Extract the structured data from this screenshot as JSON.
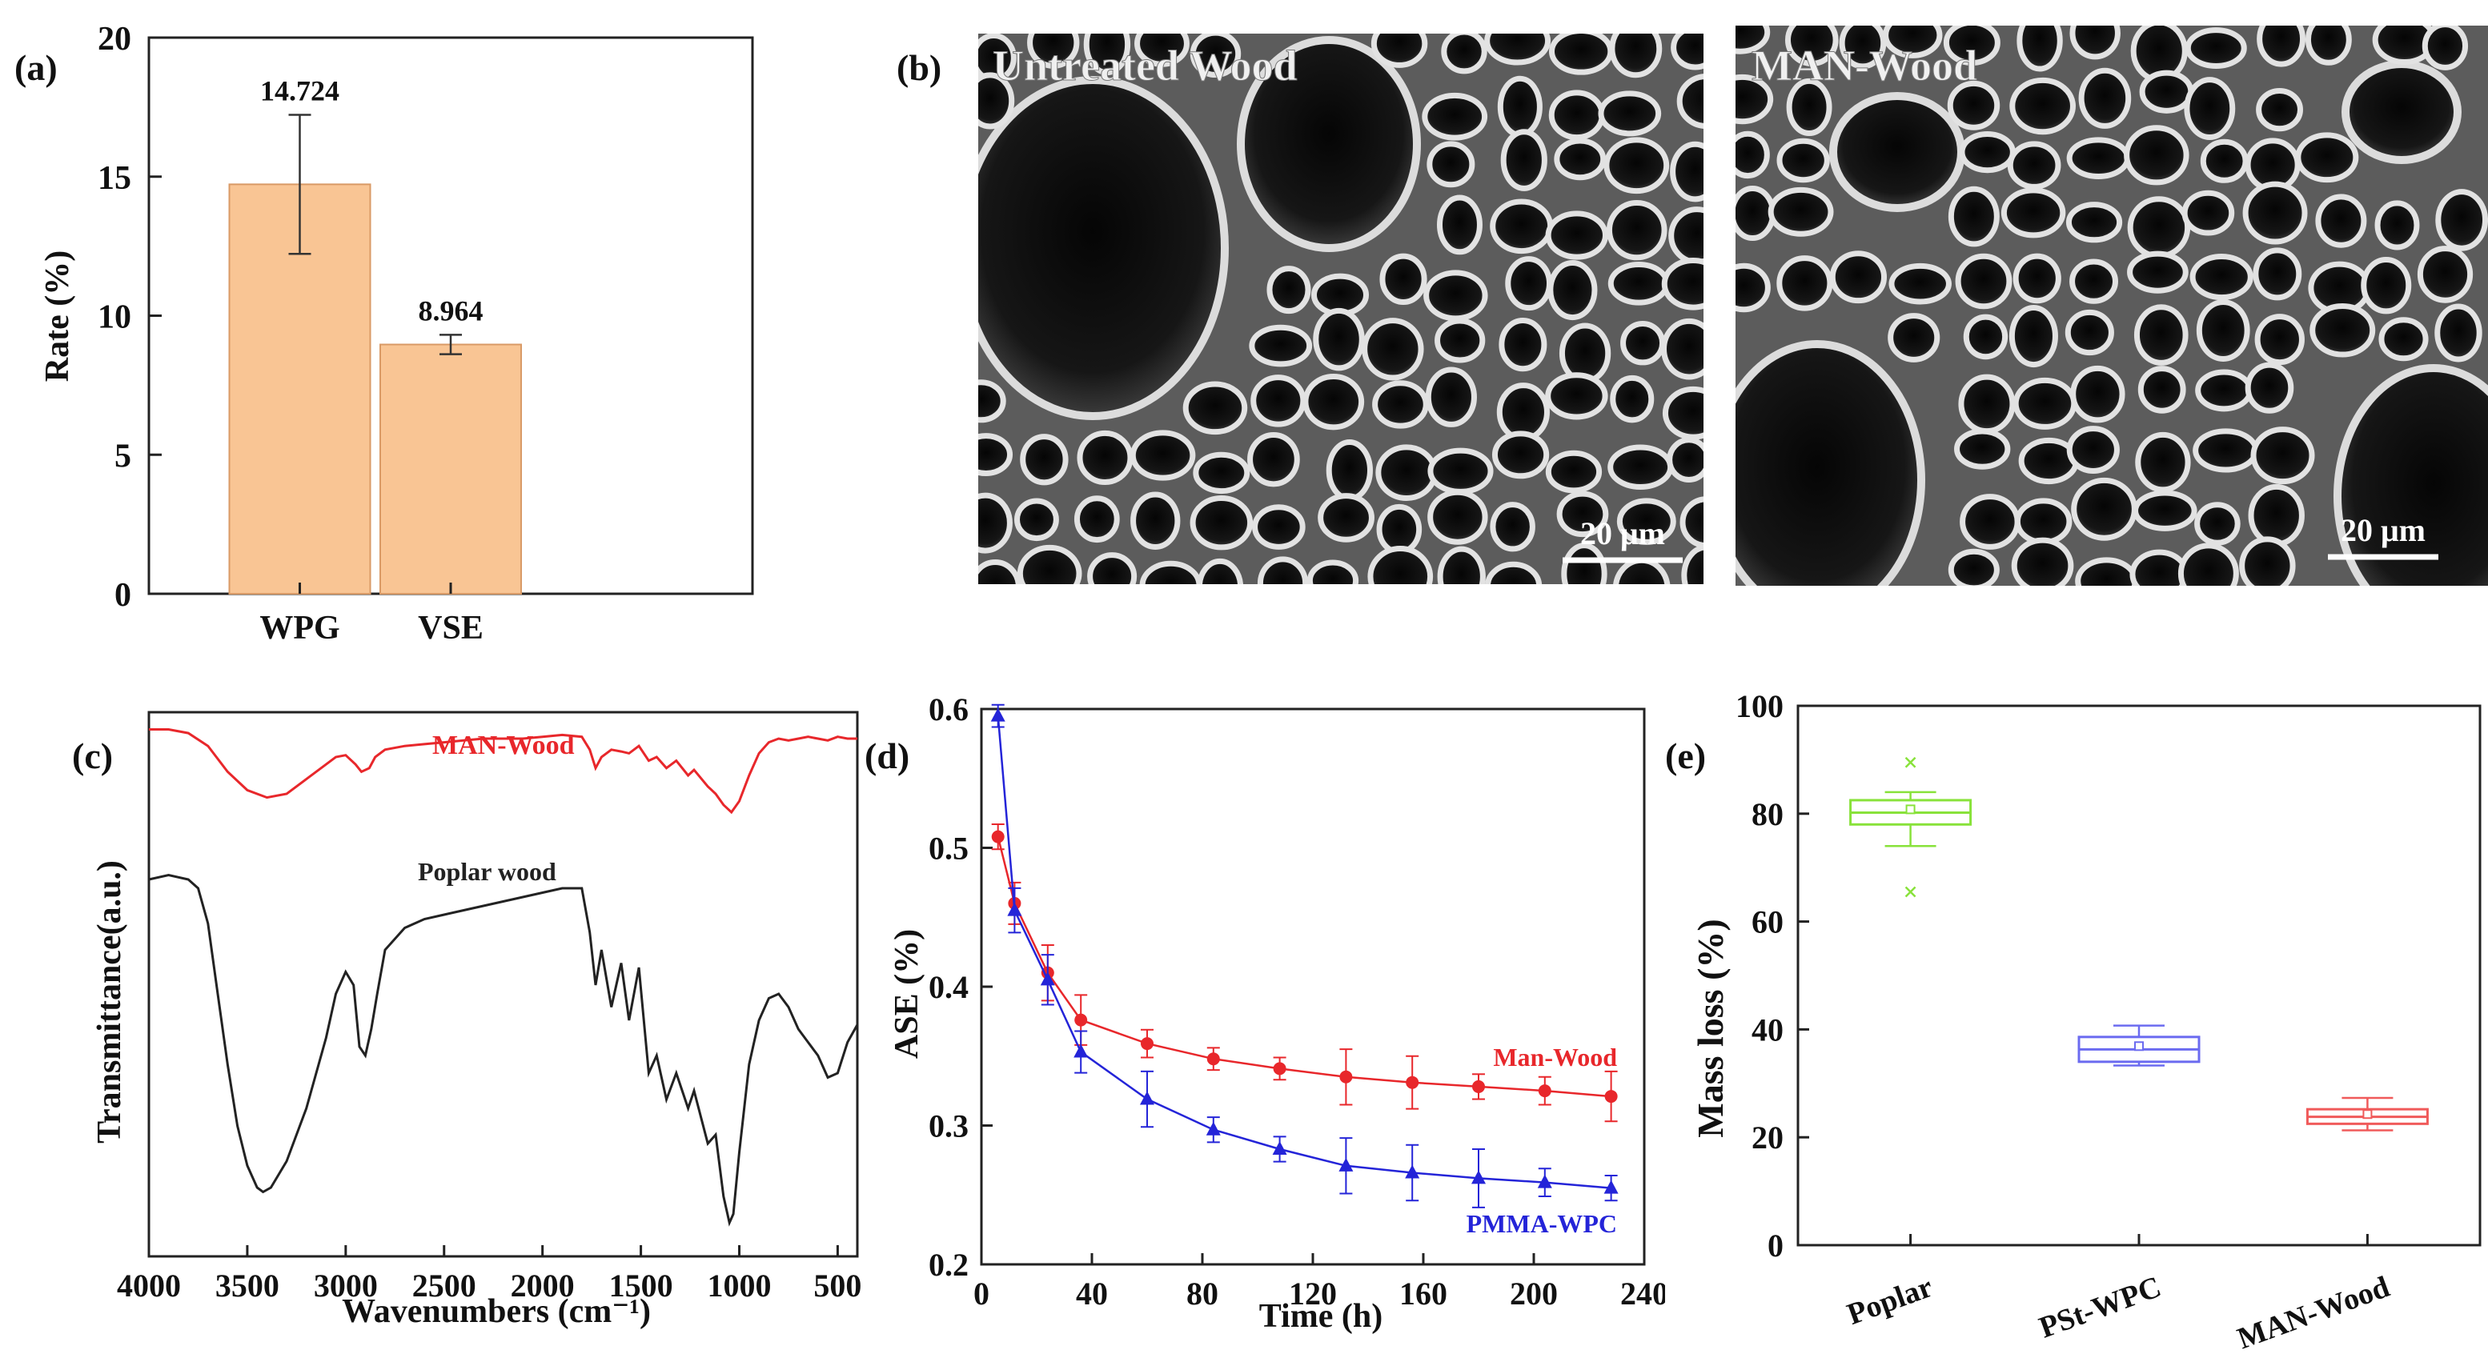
{
  "chart_data": [
    {
      "id": "a",
      "type": "bar",
      "panel_label": "(a)",
      "categories": [
        "WPG",
        "VSE"
      ],
      "values": [
        14.724,
        8.964
      ],
      "errors": [
        2.5,
        0.35
      ],
      "value_labels": [
        "14.724",
        "8.964"
      ],
      "ylabel": "Rate (%)",
      "ylim": [
        0,
        20
      ],
      "yticks": [
        0,
        5,
        10,
        15,
        20
      ],
      "bar_color": "#f9c594",
      "bar_edge": "#d99a66"
    },
    {
      "id": "c",
      "type": "line",
      "panel_label": "(c)",
      "xlabel": "Wavenumbers (cm⁻¹)",
      "ylabel": "Transmittance(a.u.)",
      "xlim": [
        4000,
        400
      ],
      "xticks": [
        4000,
        3500,
        3000,
        2500,
        2000,
        1500,
        1000,
        500
      ],
      "series": [
        {
          "name": "MAN-Wood",
          "color": "#e8272b",
          "points": [
            [
              4000,
              0.95
            ],
            [
              3900,
              0.95
            ],
            [
              3800,
              0.93
            ],
            [
              3700,
              0.86
            ],
            [
              3600,
              0.72
            ],
            [
              3500,
              0.62
            ],
            [
              3400,
              0.58
            ],
            [
              3300,
              0.6
            ],
            [
              3200,
              0.68
            ],
            [
              3100,
              0.76
            ],
            [
              3050,
              0.8
            ],
            [
              3000,
              0.81
            ],
            [
              2950,
              0.76
            ],
            [
              2920,
              0.72
            ],
            [
              2880,
              0.74
            ],
            [
              2850,
              0.8
            ],
            [
              2800,
              0.84
            ],
            [
              2700,
              0.86
            ],
            [
              2600,
              0.87
            ],
            [
              2500,
              0.88
            ],
            [
              2400,
              0.89
            ],
            [
              2300,
              0.9
            ],
            [
              2200,
              0.9
            ],
            [
              2100,
              0.9
            ],
            [
              2000,
              0.91
            ],
            [
              1900,
              0.92
            ],
            [
              1800,
              0.91
            ],
            [
              1760,
              0.84
            ],
            [
              1730,
              0.74
            ],
            [
              1700,
              0.8
            ],
            [
              1650,
              0.84
            ],
            [
              1600,
              0.83
            ],
            [
              1560,
              0.82
            ],
            [
              1510,
              0.86
            ],
            [
              1460,
              0.78
            ],
            [
              1420,
              0.8
            ],
            [
              1370,
              0.74
            ],
            [
              1320,
              0.78
            ],
            [
              1260,
              0.7
            ],
            [
              1230,
              0.73
            ],
            [
              1160,
              0.64
            ],
            [
              1120,
              0.6
            ],
            [
              1080,
              0.54
            ],
            [
              1040,
              0.5
            ],
            [
              1000,
              0.56
            ],
            [
              950,
              0.7
            ],
            [
              900,
              0.82
            ],
            [
              850,
              0.88
            ],
            [
              800,
              0.9
            ],
            [
              750,
              0.89
            ],
            [
              700,
              0.9
            ],
            [
              650,
              0.91
            ],
            [
              600,
              0.9
            ],
            [
              550,
              0.89
            ],
            [
              500,
              0.91
            ],
            [
              450,
              0.9
            ],
            [
              400,
              0.9
            ]
          ]
        },
        {
          "name": "Poplar wood",
          "color": "#222222",
          "points": [
            [
              4000,
              0.82
            ],
            [
              3900,
              0.83
            ],
            [
              3800,
              0.82
            ],
            [
              3750,
              0.8
            ],
            [
              3700,
              0.72
            ],
            [
              3650,
              0.56
            ],
            [
              3600,
              0.4
            ],
            [
              3550,
              0.26
            ],
            [
              3500,
              0.17
            ],
            [
              3450,
              0.12
            ],
            [
              3420,
              0.11
            ],
            [
              3380,
              0.12
            ],
            [
              3300,
              0.18
            ],
            [
              3200,
              0.3
            ],
            [
              3100,
              0.46
            ],
            [
              3050,
              0.56
            ],
            [
              3000,
              0.61
            ],
            [
              2960,
              0.58
            ],
            [
              2930,
              0.44
            ],
            [
              2900,
              0.42
            ],
            [
              2870,
              0.48
            ],
            [
              2840,
              0.56
            ],
            [
              2800,
              0.66
            ],
            [
              2700,
              0.71
            ],
            [
              2600,
              0.73
            ],
            [
              2500,
              0.74
            ],
            [
              2400,
              0.75
            ],
            [
              2300,
              0.76
            ],
            [
              2200,
              0.77
            ],
            [
              2100,
              0.78
            ],
            [
              2000,
              0.79
            ],
            [
              1900,
              0.8
            ],
            [
              1800,
              0.8
            ],
            [
              1760,
              0.7
            ],
            [
              1730,
              0.58
            ],
            [
              1700,
              0.66
            ],
            [
              1650,
              0.53
            ],
            [
              1600,
              0.63
            ],
            [
              1560,
              0.5
            ],
            [
              1510,
              0.62
            ],
            [
              1460,
              0.38
            ],
            [
              1420,
              0.42
            ],
            [
              1370,
              0.32
            ],
            [
              1320,
              0.38
            ],
            [
              1260,
              0.3
            ],
            [
              1230,
              0.34
            ],
            [
              1160,
              0.22
            ],
            [
              1120,
              0.24
            ],
            [
              1080,
              0.1
            ],
            [
              1050,
              0.04
            ],
            [
              1030,
              0.06
            ],
            [
              1000,
              0.2
            ],
            [
              950,
              0.4
            ],
            [
              900,
              0.5
            ],
            [
              850,
              0.55
            ],
            [
              800,
              0.56
            ],
            [
              750,
              0.53
            ],
            [
              700,
              0.48
            ],
            [
              650,
              0.45
            ],
            [
              600,
              0.42
            ],
            [
              550,
              0.37
            ],
            [
              500,
              0.38
            ],
            [
              450,
              0.45
            ],
            [
              400,
              0.49
            ]
          ]
        }
      ]
    },
    {
      "id": "d",
      "type": "line",
      "panel_label": "(d)",
      "xlabel": "Time (h)",
      "ylabel": "ASE (%)",
      "xlim": [
        0,
        240
      ],
      "ylim": [
        0.2,
        0.6
      ],
      "xticks": [
        0,
        40,
        80,
        120,
        160,
        200,
        240
      ],
      "yticks": [
        0.2,
        0.3,
        0.4,
        0.5,
        0.6
      ],
      "x": [
        6,
        12,
        24,
        36,
        60,
        84,
        108,
        132,
        156,
        180,
        204,
        228
      ],
      "series": [
        {
          "name": "Man-Wood",
          "color": "#e8272b",
          "marker": "circle",
          "values": [
            0.508,
            0.46,
            0.41,
            0.376,
            0.359,
            0.348,
            0.341,
            0.335,
            0.331,
            0.328,
            0.325,
            0.321
          ],
          "errors": [
            0.009,
            0.015,
            0.02,
            0.018,
            0.01,
            0.008,
            0.008,
            0.02,
            0.019,
            0.009,
            0.01,
            0.018
          ]
        },
        {
          "name": "PMMA-WPC",
          "color": "#2424d8",
          "marker": "triangle",
          "values": [
            0.595,
            0.455,
            0.405,
            0.353,
            0.319,
            0.297,
            0.283,
            0.271,
            0.266,
            0.262,
            0.259,
            0.255
          ],
          "errors": [
            0.008,
            0.016,
            0.018,
            0.015,
            0.02,
            0.009,
            0.009,
            0.02,
            0.02,
            0.021,
            0.01,
            0.009
          ]
        }
      ]
    },
    {
      "id": "e",
      "type": "box",
      "panel_label": "(e)",
      "ylabel": "Mass loss (%)",
      "ylim": [
        0,
        100
      ],
      "yticks": [
        0,
        20,
        40,
        60,
        80,
        100
      ],
      "categories": [
        "Poplar",
        "PSt-WPC",
        "MAN-Wood"
      ],
      "boxes": [
        {
          "name": "Poplar",
          "color": "#88e23a",
          "q1": 78,
          "median": 80.2,
          "mean": 80.8,
          "q3": 82.5,
          "whisker_low": 74,
          "whisker_high": 84,
          "outliers": [
            89.5,
            65.5
          ]
        },
        {
          "name": "PSt-WPC",
          "color": "#6b6bf0",
          "q1": 34,
          "median": 36.3,
          "mean": 36.9,
          "q3": 38.6,
          "whisker_low": 33.3,
          "whisker_high": 40.7,
          "outliers": []
        },
        {
          "name": "MAN-Wood",
          "color": "#f05a5a",
          "q1": 22.5,
          "median": 23.8,
          "mean": 24.3,
          "q3": 25.2,
          "whisker_low": 21.3,
          "whisker_high": 27.3,
          "outliers": []
        }
      ]
    }
  ],
  "sem": {
    "panel_label": "(b)",
    "left_title": "Untreated Wood",
    "right_title": "MAN-Wood",
    "scale_left": "20 μm",
    "scale_right": "20 μm"
  }
}
